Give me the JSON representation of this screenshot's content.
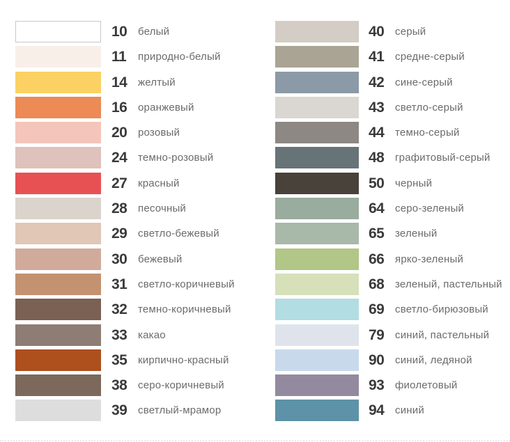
{
  "page": {
    "background": "#ffffff",
    "code_text_color": "#3a3a3a",
    "name_text_color": "#6b6b6b"
  },
  "palette": {
    "columns": [
      {
        "items": [
          {
            "code": "10",
            "name": "белый",
            "color": "#ffffff",
            "border": "#c8c8c8"
          },
          {
            "code": "11",
            "name": "природно-белый",
            "color": "#f9efe9"
          },
          {
            "code": "14",
            "name": "желтый",
            "color": "#fbd164"
          },
          {
            "code": "16",
            "name": "оранжевый",
            "color": "#ec8b55"
          },
          {
            "code": "20",
            "name": "розовый",
            "color": "#f4c5ba"
          },
          {
            "code": "24",
            "name": "темно-розовый",
            "color": "#dec2bb"
          },
          {
            "code": "27",
            "name": "красный",
            "color": "#e85153"
          },
          {
            "code": "28",
            "name": "песочный",
            "color": "#dbd4cd"
          },
          {
            "code": "29",
            "name": "светло-бежевый",
            "color": "#e0c7b6"
          },
          {
            "code": "30",
            "name": "бежевый",
            "color": "#d0ab9c"
          },
          {
            "code": "31",
            "name": "светло-коричневый",
            "color": "#c39271"
          },
          {
            "code": "32",
            "name": "темно-коричневый",
            "color": "#7b6054"
          },
          {
            "code": "33",
            "name": "какао",
            "color": "#8d7d75"
          },
          {
            "code": "35",
            "name": "кирпично-красный",
            "color": "#ae4f1e"
          },
          {
            "code": "38",
            "name": "серо-коричневый",
            "color": "#7d695c"
          },
          {
            "code": "39",
            "name": "светлый-мрамор",
            "color": "#dcdddc"
          }
        ]
      },
      {
        "items": [
          {
            "code": "40",
            "name": "серый",
            "color": "#d3cdc6"
          },
          {
            "code": "41",
            "name": "средне-серый",
            "color": "#aaa494"
          },
          {
            "code": "42",
            "name": "сине-серый",
            "color": "#8b9aa6"
          },
          {
            "code": "43",
            "name": "светло-серый",
            "color": "#dad7d3"
          },
          {
            "code": "44",
            "name": "темно-серый",
            "color": "#8d8883"
          },
          {
            "code": "48",
            "name": "графитовый-серый",
            "color": "#677477"
          },
          {
            "code": "50",
            "name": "черный",
            "color": "#48423a"
          },
          {
            "code": "64",
            "name": "серо-зеленый",
            "color": "#99ac9e"
          },
          {
            "code": "65",
            "name": "зеленый",
            "color": "#a8b8a9"
          },
          {
            "code": "66",
            "name": "ярко-зеленый",
            "color": "#b1c687"
          },
          {
            "code": "68",
            "name": "зеленый, пастельный",
            "color": "#d6e0b9"
          },
          {
            "code": "69",
            "name": "светло-бирюзовый",
            "color": "#b2dde2"
          },
          {
            "code": "79",
            "name": "синий, пастельный",
            "color": "#dfe4ec"
          },
          {
            "code": "90",
            "name": "синий, ледяной",
            "color": "#c8d9ec"
          },
          {
            "code": "93",
            "name": "фиолетовый",
            "color": "#938aa0"
          },
          {
            "code": "94",
            "name": "синий",
            "color": "#5d92a8"
          }
        ]
      }
    ]
  }
}
